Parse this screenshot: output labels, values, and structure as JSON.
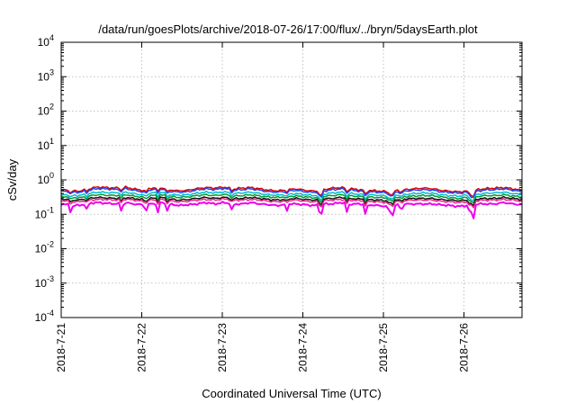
{
  "chart_data": {
    "type": "line",
    "title": "/data/run/goesPlots/archive/2018-07-26/17:00/flux/../bryn/5daysEarth.plot",
    "xlabel": "Coordinated Universal Time (UTC)",
    "ylabel": "cSv/day",
    "yscale": "log",
    "ylim": [
      0.0001,
      10000
    ],
    "xlim": [
      0,
      5.72
    ],
    "y_ticks": [
      {
        "value": 0.0001,
        "base": "10",
        "exp": "-4"
      },
      {
        "value": 0.001,
        "base": "10",
        "exp": "-3"
      },
      {
        "value": 0.01,
        "base": "10",
        "exp": "-2"
      },
      {
        "value": 0.1,
        "base": "10",
        "exp": "-1"
      },
      {
        "value": 1,
        "base": "10",
        "exp": "0"
      },
      {
        "value": 10,
        "base": "10",
        "exp": "1"
      },
      {
        "value": 100,
        "base": "10",
        "exp": "2"
      },
      {
        "value": 1000,
        "base": "10",
        "exp": "3"
      },
      {
        "value": 10000,
        "base": "10",
        "exp": "4"
      }
    ],
    "x_ticks": [
      {
        "value": 0,
        "label": "2018-7-21"
      },
      {
        "value": 1,
        "label": "2018-7-22"
      },
      {
        "value": 2,
        "label": "2018-7-23"
      },
      {
        "value": 3,
        "label": "2018-7-24"
      },
      {
        "value": 4,
        "label": "2018-7-25"
      },
      {
        "value": 5,
        "label": "2018-7-26"
      }
    ],
    "grid": true,
    "series": [
      {
        "color": "#dd0000",
        "values": [
          0.52,
          0.5,
          0.47,
          0.55,
          0.62,
          0.6,
          0.58,
          0.63,
          0.55,
          0.5,
          0.58,
          0.6,
          0.52,
          0.48,
          0.5,
          0.56,
          0.6,
          0.58,
          0.62,
          0.55,
          0.58,
          0.6,
          0.55,
          0.5,
          0.48,
          0.52,
          0.55,
          0.5,
          0.47,
          0.52,
          0.58,
          0.6,
          0.56,
          0.52,
          0.5,
          0.48,
          0.46,
          0.5,
          0.52,
          0.55,
          0.58,
          0.56,
          0.5,
          0.47,
          0.45,
          0.48,
          0.52,
          0.56,
          0.58,
          0.6,
          0.55,
          0.5
        ]
      },
      {
        "color": "#2244ee",
        "values": [
          0.47,
          0.46,
          0.43,
          0.5,
          0.56,
          0.55,
          0.52,
          0.57,
          0.5,
          0.45,
          0.52,
          0.55,
          0.47,
          0.44,
          0.45,
          0.51,
          0.55,
          0.52,
          0.57,
          0.5,
          0.52,
          0.55,
          0.5,
          0.45,
          0.44,
          0.47,
          0.5,
          0.45,
          0.43,
          0.47,
          0.52,
          0.55,
          0.51,
          0.47,
          0.45,
          0.44,
          0.42,
          0.45,
          0.47,
          0.5,
          0.52,
          0.51,
          0.45,
          0.43,
          0.41,
          0.44,
          0.47,
          0.51,
          0.52,
          0.55,
          0.5,
          0.45
        ]
      },
      {
        "color": "#00bbcc",
        "values": [
          0.38,
          0.37,
          0.35,
          0.4,
          0.44,
          0.43,
          0.42,
          0.45,
          0.4,
          0.37,
          0.42,
          0.44,
          0.38,
          0.36,
          0.37,
          0.41,
          0.44,
          0.42,
          0.45,
          0.4,
          0.42,
          0.44,
          0.4,
          0.37,
          0.36,
          0.38,
          0.4,
          0.37,
          0.35,
          0.38,
          0.42,
          0.44,
          0.41,
          0.38,
          0.37,
          0.36,
          0.34,
          0.37,
          0.38,
          0.4,
          0.42,
          0.41,
          0.37,
          0.35,
          0.34,
          0.36,
          0.38,
          0.41,
          0.42,
          0.44,
          0.4,
          0.37
        ]
      },
      {
        "color": "#009933",
        "values": [
          0.33,
          0.32,
          0.3,
          0.34,
          0.37,
          0.36,
          0.35,
          0.38,
          0.34,
          0.32,
          0.35,
          0.37,
          0.33,
          0.31,
          0.32,
          0.35,
          0.37,
          0.35,
          0.38,
          0.34,
          0.35,
          0.37,
          0.34,
          0.32,
          0.31,
          0.33,
          0.34,
          0.32,
          0.3,
          0.33,
          0.35,
          0.37,
          0.35,
          0.33,
          0.32,
          0.31,
          0.3,
          0.32,
          0.33,
          0.34,
          0.35,
          0.35,
          0.32,
          0.3,
          0.29,
          0.31,
          0.33,
          0.35,
          0.35,
          0.37,
          0.34,
          0.32
        ]
      },
      {
        "color": "#111111",
        "values": [
          0.28,
          0.27,
          0.26,
          0.29,
          0.31,
          0.3,
          0.29,
          0.31,
          0.29,
          0.27,
          0.29,
          0.31,
          0.28,
          0.26,
          0.27,
          0.29,
          0.31,
          0.29,
          0.31,
          0.29,
          0.29,
          0.31,
          0.29,
          0.27,
          0.26,
          0.28,
          0.29,
          0.27,
          0.26,
          0.28,
          0.29,
          0.31,
          0.29,
          0.28,
          0.27,
          0.26,
          0.25,
          0.27,
          0.28,
          0.29,
          0.29,
          0.29,
          0.27,
          0.26,
          0.25,
          0.26,
          0.28,
          0.29,
          0.29,
          0.31,
          0.29,
          0.27
        ]
      },
      {
        "color": "#ee2288",
        "values": [
          0.25,
          0.24,
          0.23,
          0.26,
          0.27,
          0.27,
          0.26,
          0.28,
          0.26,
          0.24,
          0.26,
          0.27,
          0.25,
          0.23,
          0.24,
          0.26,
          0.27,
          0.26,
          0.28,
          0.26,
          0.26,
          0.27,
          0.26,
          0.24,
          0.23,
          0.25,
          0.26,
          0.24,
          0.23,
          0.25,
          0.26,
          0.27,
          0.26,
          0.25,
          0.24,
          0.23,
          0.22,
          0.24,
          0.25,
          0.26,
          0.26,
          0.26,
          0.24,
          0.23,
          0.22,
          0.23,
          0.25,
          0.26,
          0.26,
          0.27,
          0.26,
          0.24
        ]
      },
      {
        "color": "#ee00ee",
        "values": [
          0.2,
          0.19,
          0.18,
          0.21,
          0.22,
          0.21,
          0.2,
          0.22,
          0.2,
          0.19,
          0.2,
          0.22,
          0.2,
          0.18,
          0.19,
          0.2,
          0.22,
          0.2,
          0.22,
          0.2,
          0.2,
          0.22,
          0.2,
          0.19,
          0.18,
          0.2,
          0.2,
          0.19,
          0.18,
          0.2,
          0.2,
          0.22,
          0.2,
          0.2,
          0.19,
          0.18,
          0.17,
          0.19,
          0.2,
          0.2,
          0.2,
          0.2,
          0.19,
          0.18,
          0.17,
          0.18,
          0.2,
          0.2,
          0.2,
          0.22,
          0.2,
          0.19
        ]
      }
    ],
    "dips": [
      {
        "x": 0.12,
        "depth": 0.55
      },
      {
        "x": 0.32,
        "depth": 0.6
      },
      {
        "x": 0.75,
        "depth": 0.5
      },
      {
        "x": 1.05,
        "depth": 0.55
      },
      {
        "x": 1.2,
        "depth": 0.5
      },
      {
        "x": 1.32,
        "depth": 0.55
      },
      {
        "x": 2.12,
        "depth": 0.6
      },
      {
        "x": 2.8,
        "depth": 0.6
      },
      {
        "x": 3.22,
        "depth": 0.22
      },
      {
        "x": 3.55,
        "depth": 0.5
      },
      {
        "x": 3.78,
        "depth": 0.45
      },
      {
        "x": 4.08,
        "depth": 0.45
      },
      {
        "x": 4.12,
        "depth": 0.5
      },
      {
        "x": 4.22,
        "depth": 0.55
      },
      {
        "x": 5.08,
        "depth": 0.35
      },
      {
        "x": 5.12,
        "depth": 0.4
      }
    ]
  }
}
